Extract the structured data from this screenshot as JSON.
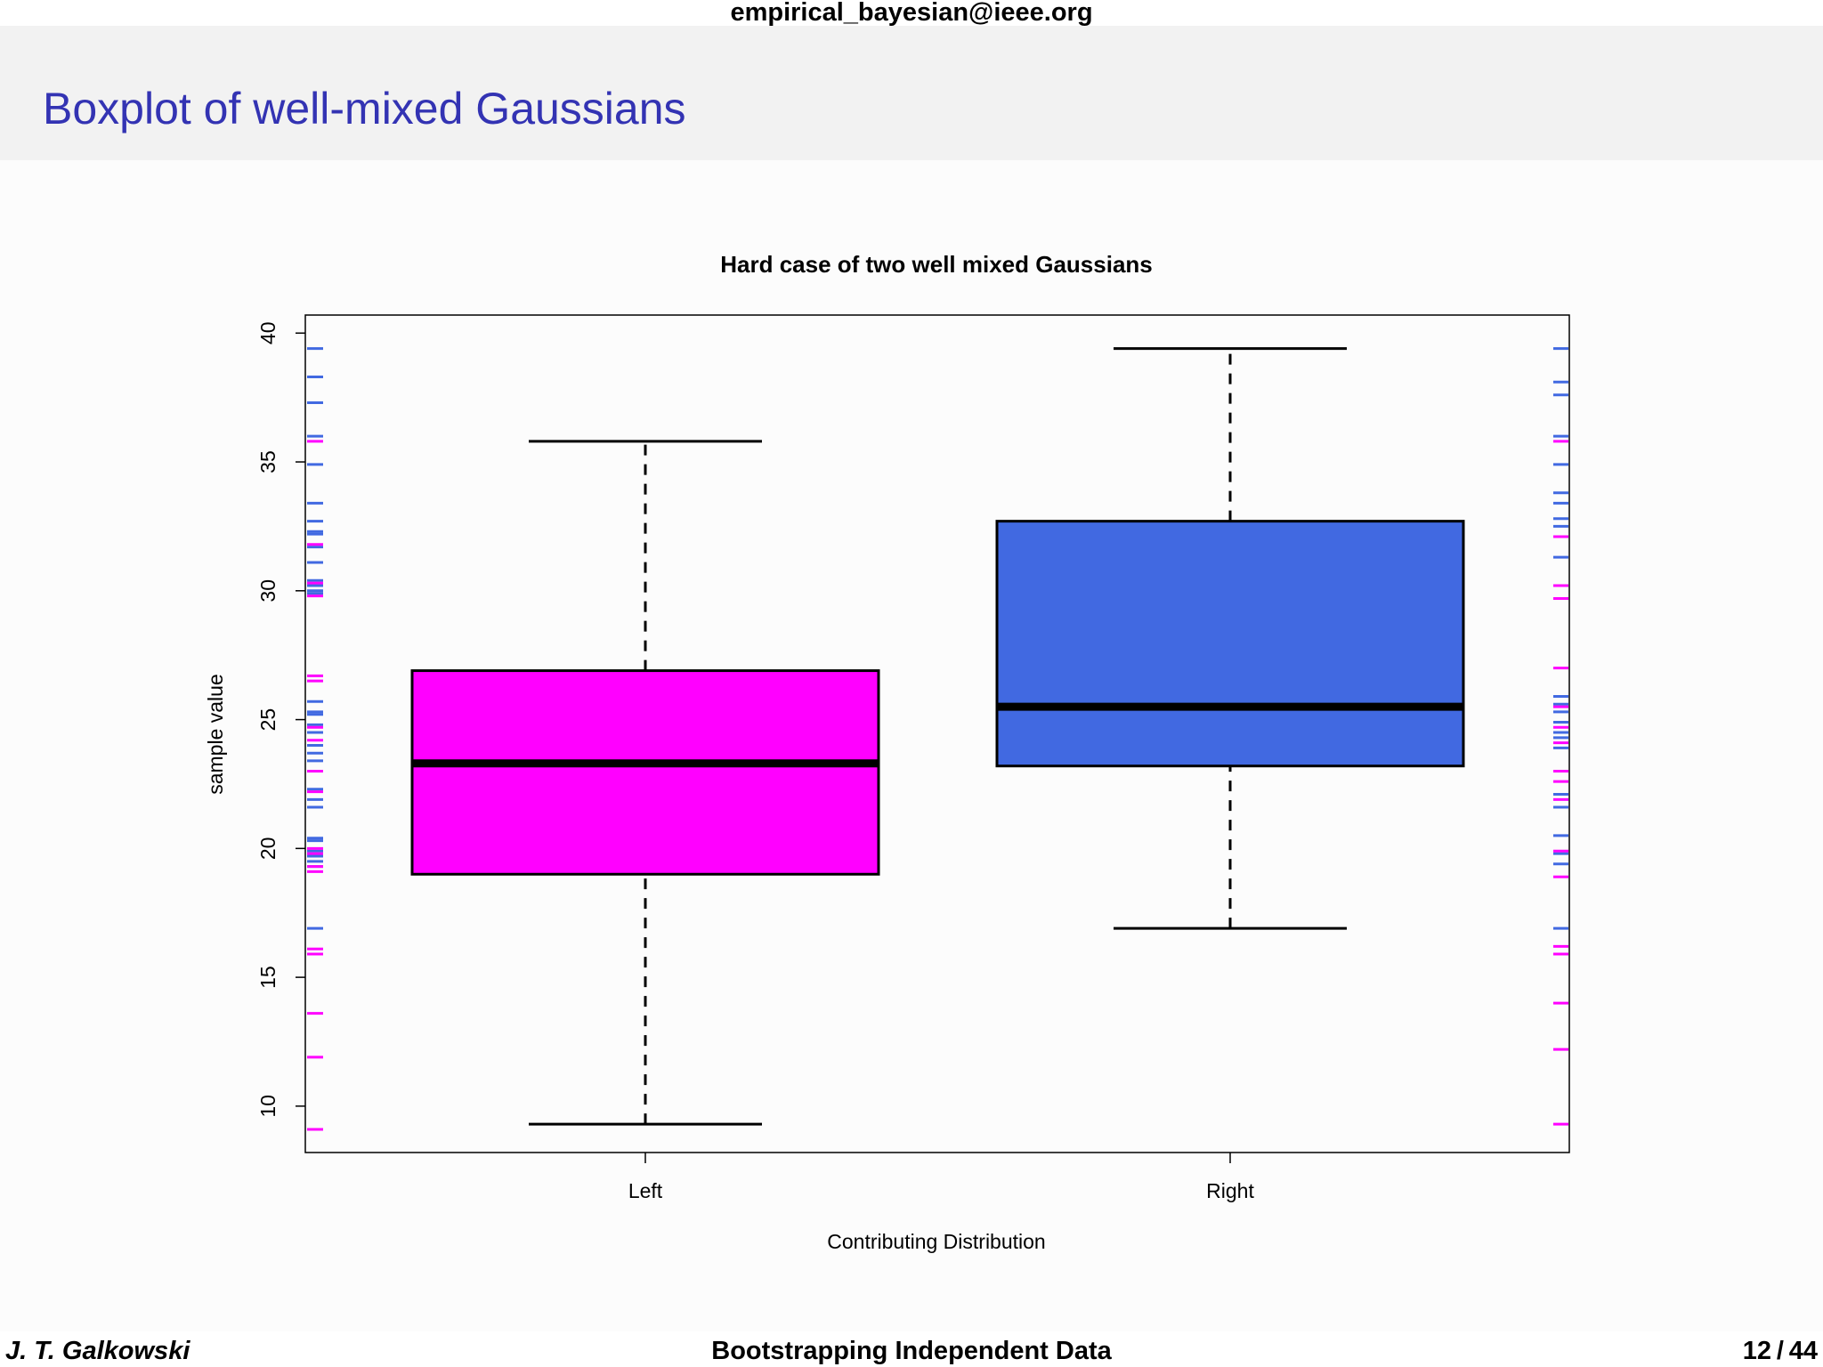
{
  "header": {
    "email": "empirical_bayesian@ieee.org"
  },
  "frame": {
    "title": "Boxplot of well-mixed Gaussians"
  },
  "footer": {
    "author": "J. T. Galkowski",
    "talk_title": "Bootstrapping Independent Data",
    "page_current": "12",
    "page_total": "44"
  },
  "colors": {
    "left": "#ff00ff",
    "right": "#4169e1",
    "title": "#3333b3"
  },
  "chart_data": {
    "type": "boxplot",
    "title": "Hard case of two well mixed Gaussians",
    "xlabel": "Contributing Distribution",
    "ylabel": "sample value",
    "categories": [
      "Left",
      "Right"
    ],
    "ylim": [
      8.2,
      40.7
    ],
    "yticks": [
      10,
      15,
      20,
      25,
      30,
      35,
      40
    ],
    "boxes": [
      {
        "name": "Left",
        "color": "#ff00ff",
        "whisker_low": 9.3,
        "q1": 19.0,
        "median": 23.3,
        "q3": 26.9,
        "whisker_high": 35.8
      },
      {
        "name": "Right",
        "color": "#4169e1",
        "whisker_low": 16.9,
        "q1": 23.2,
        "median": 25.5,
        "q3": 32.7,
        "whisker_high": 39.4
      }
    ],
    "rug_left": {
      "blue": [
        39.4,
        38.3,
        37.3,
        36.0,
        34.9,
        33.4,
        32.7,
        32.3,
        32.2,
        31.7,
        31.1,
        30.4,
        30.2,
        30.0,
        29.9,
        25.7,
        25.3,
        25.2,
        24.8,
        24.5,
        24.0,
        23.7,
        23.4,
        22.3,
        21.9,
        21.6,
        20.4,
        20.3,
        19.9,
        19.7,
        19.5,
        19.3,
        16.9
      ],
      "magenta": [
        35.8,
        31.8,
        30.3,
        29.8,
        26.7,
        26.5,
        24.7,
        24.2,
        23.0,
        22.2,
        20.0,
        19.8,
        19.3,
        19.1,
        16.1,
        15.9,
        13.6,
        11.9,
        9.1
      ]
    },
    "rug_right": {
      "blue": [
        39.4,
        38.1,
        37.6,
        36.0,
        34.9,
        33.8,
        33.4,
        32.8,
        32.5,
        31.3,
        30.2,
        25.9,
        25.6,
        25.3,
        24.9,
        24.5,
        24.3,
        23.9,
        22.1,
        21.6,
        20.5,
        19.8,
        19.4,
        16.9
      ],
      "magenta": [
        35.8,
        32.1,
        30.2,
        29.7,
        27.0,
        25.5,
        24.7,
        24.1,
        23.0,
        22.6,
        21.9,
        19.9,
        18.9,
        16.2,
        15.9,
        14.0,
        12.2,
        9.3
      ]
    }
  }
}
